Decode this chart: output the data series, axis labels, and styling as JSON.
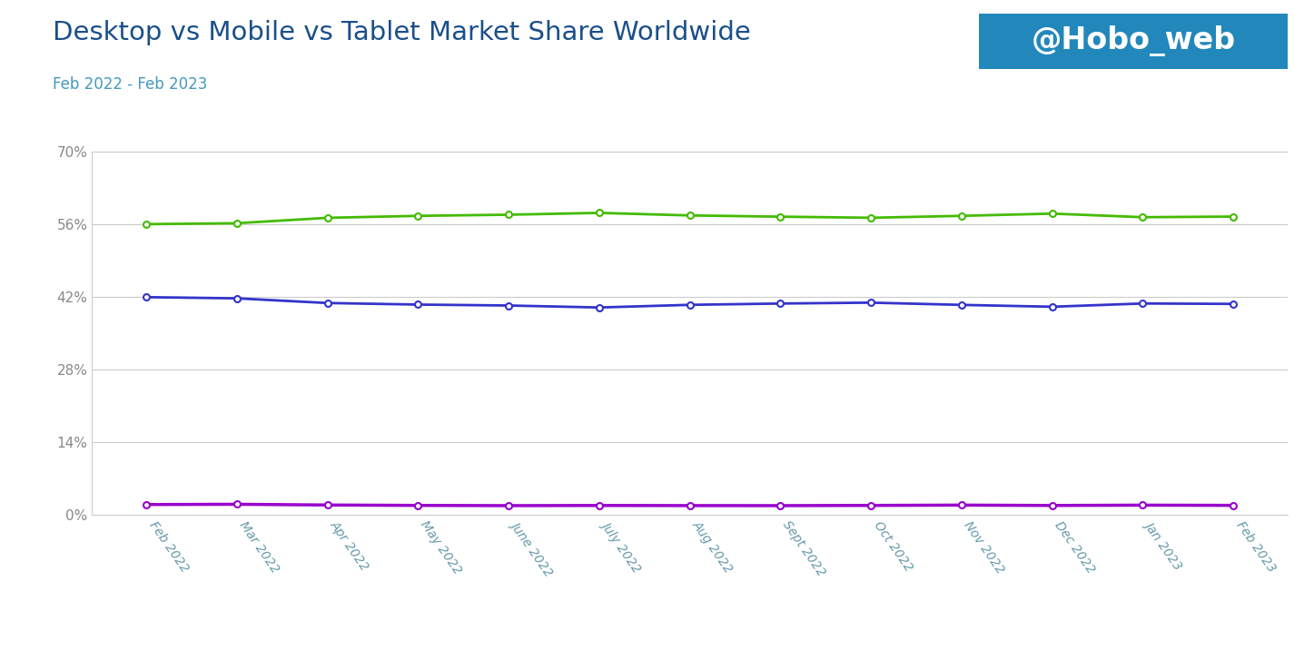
{
  "title": "Desktop vs Mobile vs Tablet Market Share Worldwide",
  "subtitle": "Feb 2022 - Feb 2023",
  "watermark": "@Hobo_web",
  "x_labels": [
    "Feb 2022",
    "Mar 2022",
    "Apr 2022",
    "May 2022",
    "June 2022",
    "July 2022",
    "Aug 2022",
    "Sept 2022",
    "Oct 2022",
    "Nov 2022",
    "Dec 2022",
    "Jan 2023",
    "Feb 2023"
  ],
  "mobile": [
    56.05,
    56.23,
    57.27,
    57.65,
    57.87,
    58.22,
    57.73,
    57.49,
    57.28,
    57.65,
    58.08,
    57.39,
    57.51
  ],
  "desktop": [
    41.97,
    41.74,
    40.84,
    40.54,
    40.36,
    39.98,
    40.49,
    40.74,
    40.91,
    40.48,
    40.12,
    40.75,
    40.67
  ],
  "tablet": [
    1.98,
    2.03,
    1.89,
    1.81,
    1.77,
    1.8,
    1.78,
    1.77,
    1.81,
    1.87,
    1.8,
    1.86,
    1.82
  ],
  "mobile_color": "#44bb00",
  "desktop_color": "#3333cc",
  "tablet_color": "#9900cc",
  "bg_color": "#ffffff",
  "plot_bg_color": "#ffffff",
  "grid_color": "#cccccc",
  "title_color": "#1a4f8a",
  "subtitle_color": "#4499bb",
  "ytick_color": "#888888",
  "xtick_color": "#6699aa",
  "watermark_bg": "#2288bb",
  "watermark_text_color": "#ffffff",
  "ylim": [
    0,
    70
  ],
  "yticks": [
    0,
    14,
    28,
    42,
    56,
    70
  ],
  "ytick_labels": [
    "0%",
    "14%",
    "28%",
    "42%",
    "56%",
    "70%"
  ]
}
